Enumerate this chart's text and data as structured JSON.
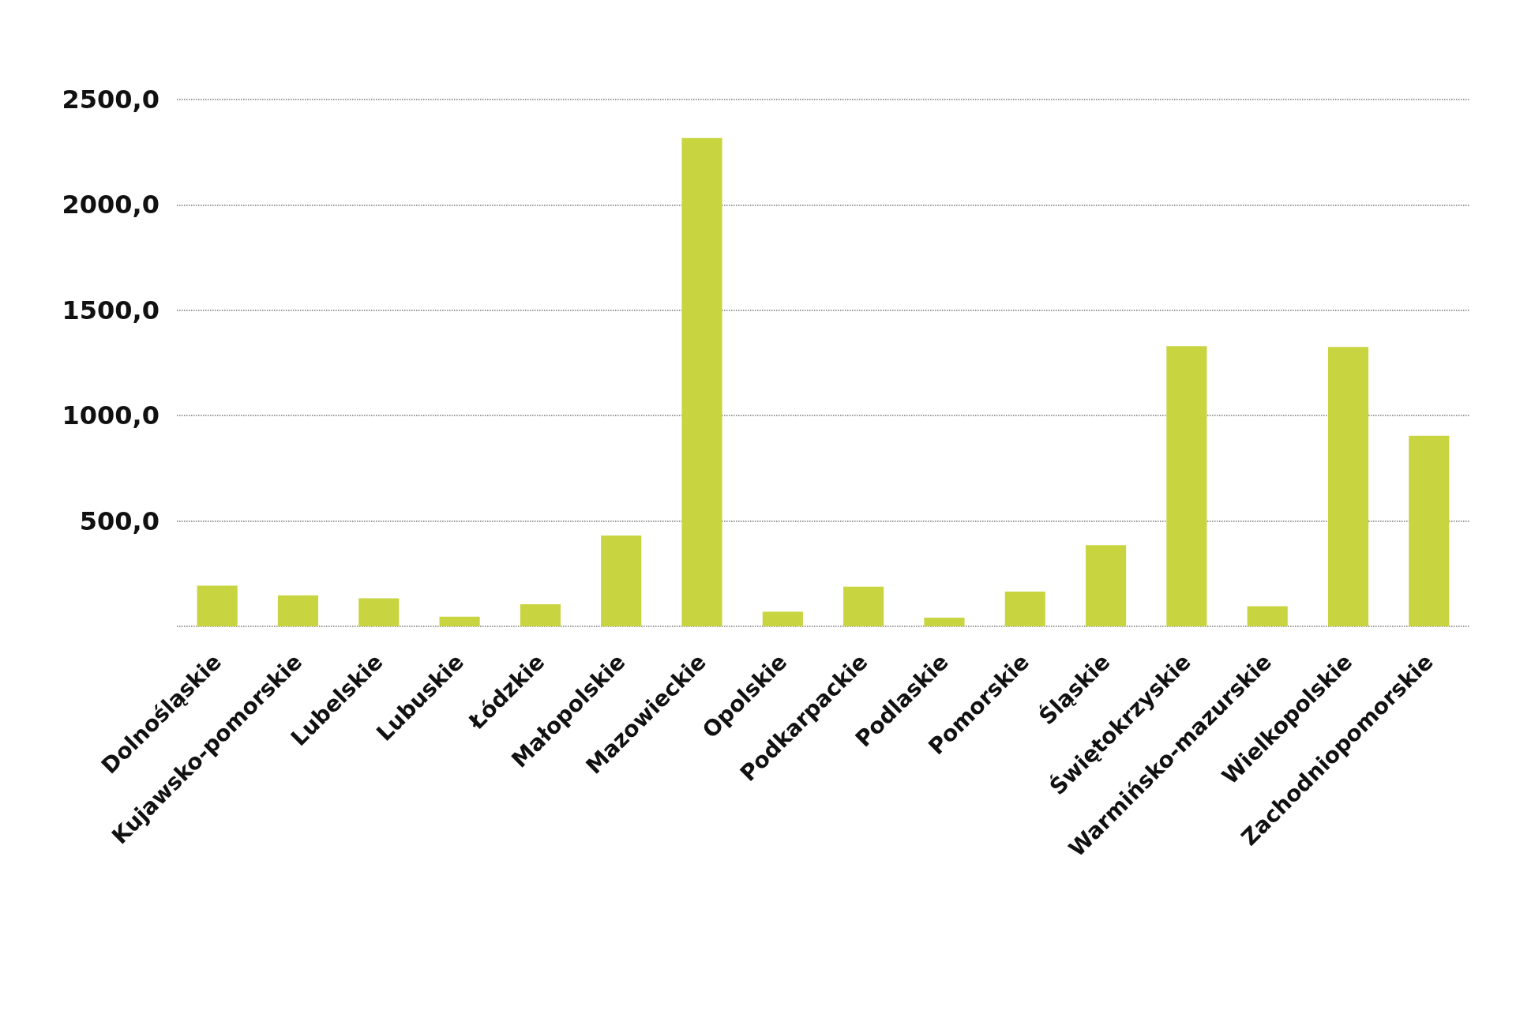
{
  "chart_data": {
    "type": "bar",
    "categories": [
      "Dolnośląskie",
      "Kujawsko-pomorskie",
      "Lubelskie",
      "Lubuskie",
      "Łódzkie",
      "Małopolskie",
      "Mazowieckie",
      "Opolskie",
      "Podkarpackie",
      "Podlaskie",
      "Pomorskie",
      "Śląskie",
      "Świętokrzyskie",
      "Warmińsko-mazurskie",
      "Wielkopolskie",
      "Zachodniopomorskie"
    ],
    "values": [
      193,
      147,
      133,
      46,
      105,
      431,
      2317,
      69,
      188,
      41,
      165,
      385,
      1330,
      96,
      1326,
      904
    ],
    "color": "#c8d541",
    "ylim": [
      0,
      2500
    ],
    "yticks": [
      {
        "value": 0,
        "label": null
      },
      {
        "value": 500,
        "label": "500,0"
      },
      {
        "value": 1000,
        "label": "1000,0"
      },
      {
        "value": 1500,
        "label": "1500,0"
      },
      {
        "value": 2000,
        "label": "2000,0"
      },
      {
        "value": 2500,
        "label": "2500,0"
      }
    ],
    "grid": "y"
  }
}
